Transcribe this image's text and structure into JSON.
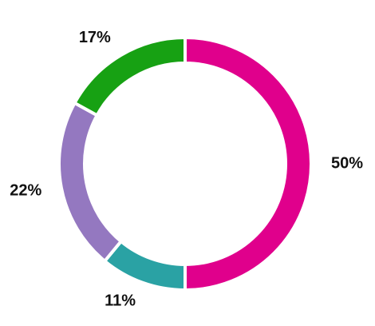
{
  "chart_data": {
    "type": "pie",
    "variant": "donut",
    "slices": [
      {
        "label": "",
        "value": 50,
        "display": "50%",
        "color": "#e0008c"
      },
      {
        "label": "",
        "value": 11,
        "display": "11%",
        "color": "#2aa2a4"
      },
      {
        "label": "",
        "value": 22,
        "display": "22%",
        "color": "#9478c0"
      },
      {
        "label": "",
        "value": 17,
        "display": "17%",
        "color": "#17a113"
      }
    ],
    "start_angle_deg": 0,
    "direction": "clockwise",
    "legend": "none"
  }
}
